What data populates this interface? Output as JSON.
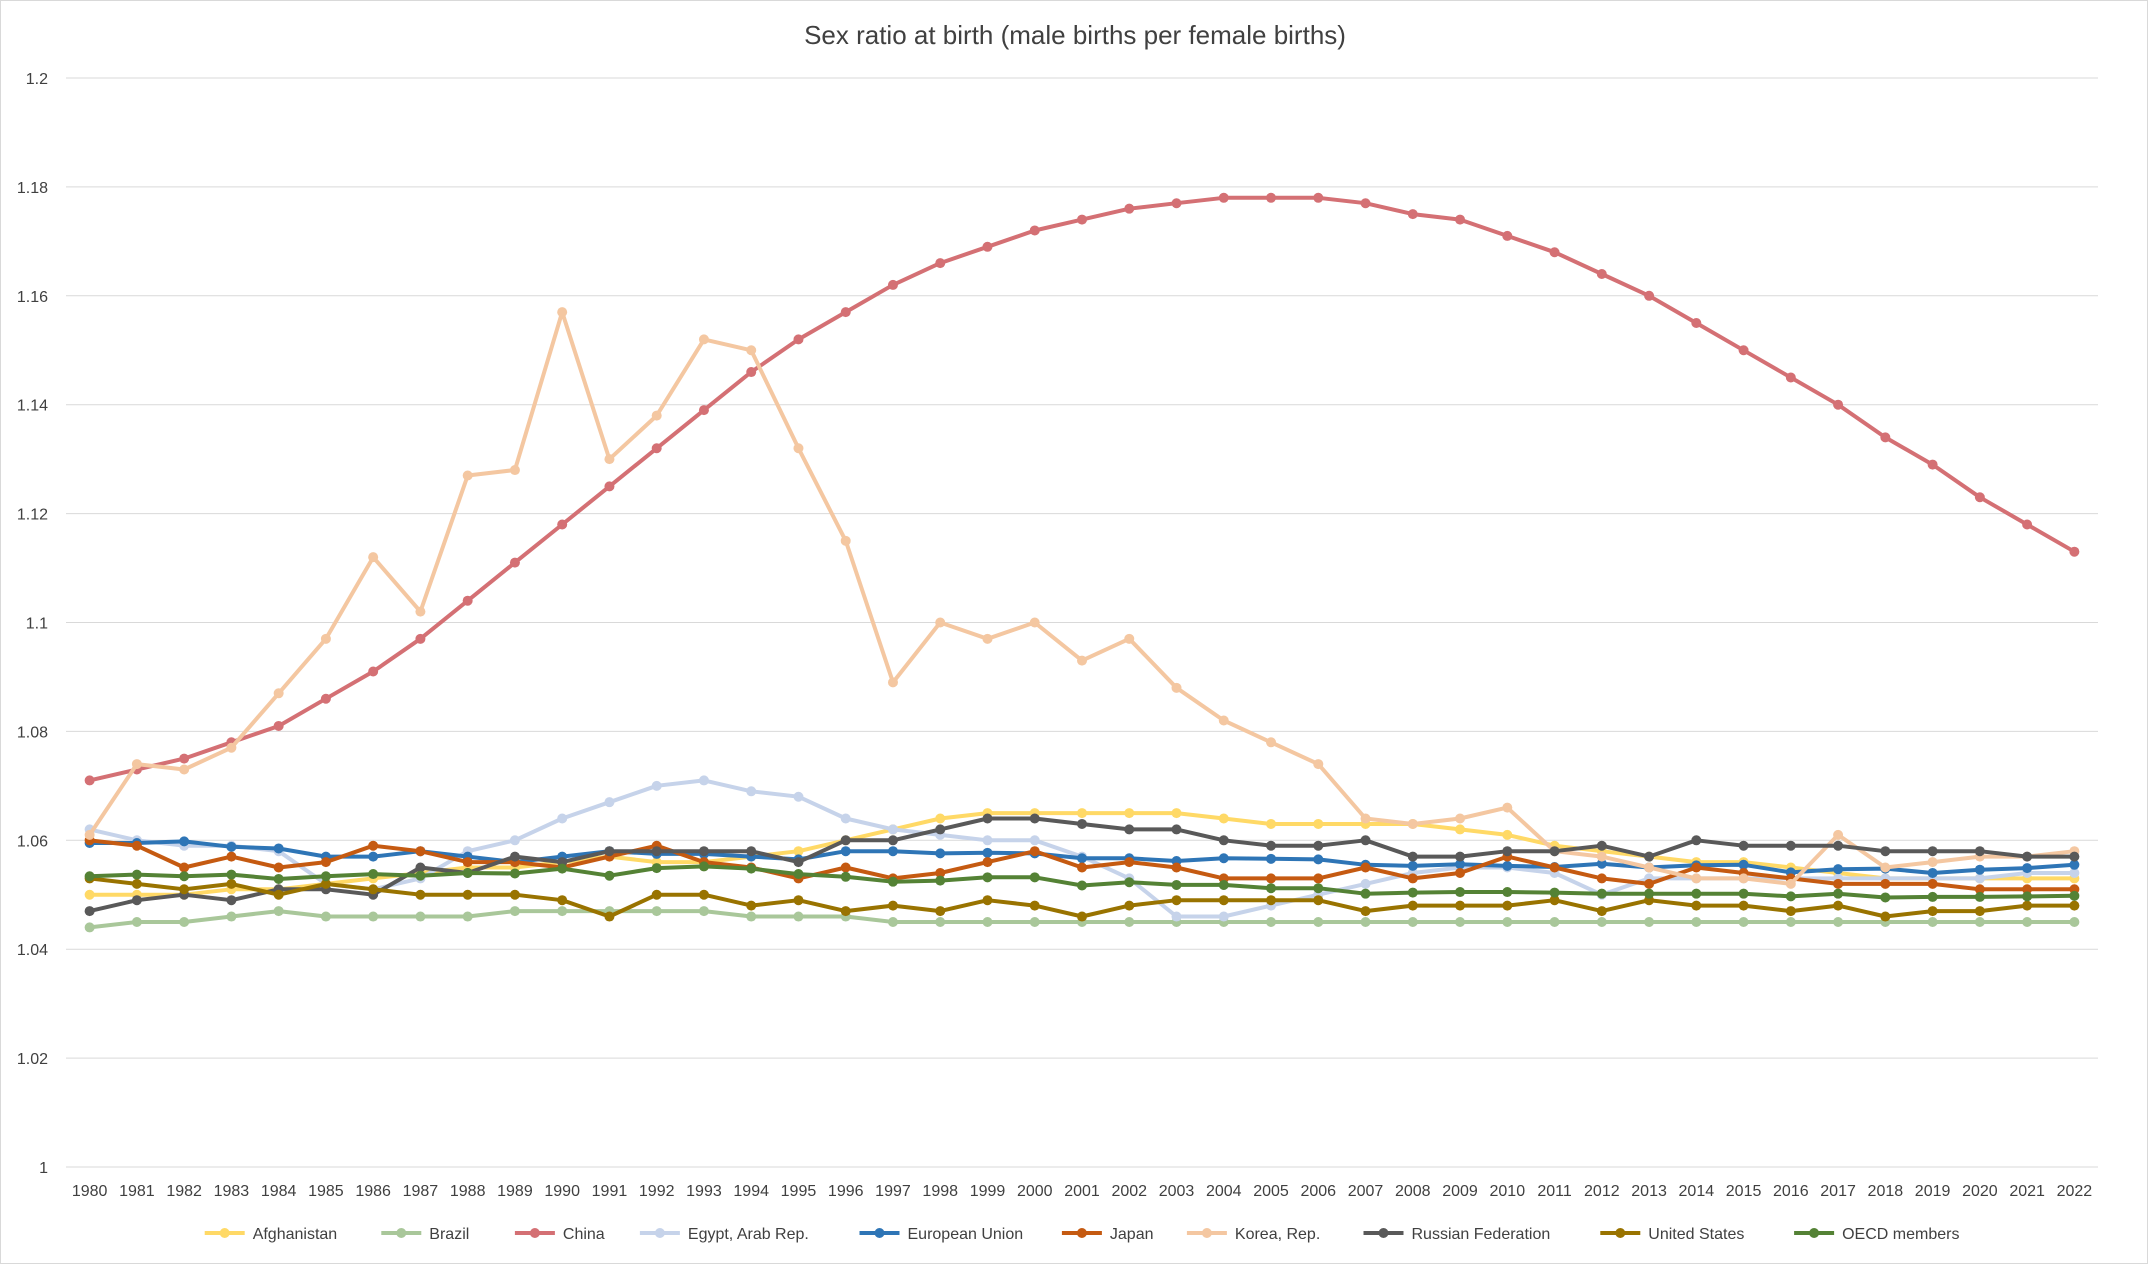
{
  "chart_data": {
    "type": "line",
    "title": "Sex ratio at birth (male births per female births)",
    "xlabel": "",
    "ylabel": "",
    "ylim": [
      1,
      1.2
    ],
    "yticks": [
      1,
      1.02,
      1.04,
      1.06,
      1.08,
      1.1,
      1.12,
      1.14,
      1.16,
      1.18,
      1.2
    ],
    "ytick_labels": [
      "1",
      "1.02",
      "1.04",
      "1.06",
      "1.08",
      "1.1",
      "1.12",
      "1.14",
      "1.16",
      "1.18",
      "1.2"
    ],
    "grid": true,
    "legend_position": "bottom",
    "x": [
      "1980",
      "1981",
      "1982",
      "1983",
      "1984",
      "1985",
      "1986",
      "1987",
      "1988",
      "1989",
      "1990",
      "1991",
      "1992",
      "1993",
      "1994",
      "1995",
      "1996",
      "1997",
      "1998",
      "1999",
      "2000",
      "2001",
      "2002",
      "2003",
      "2004",
      "2005",
      "2006",
      "2007",
      "2008",
      "2009",
      "2010",
      "2011",
      "2012",
      "2013",
      "2014",
      "2015",
      "2016",
      "2017",
      "2018",
      "2019",
      "2020",
      "2021",
      "2022"
    ],
    "series": [
      {
        "name": "Afghanistan",
        "color": "#ffd966",
        "values": [
          1.05,
          1.05,
          1.05,
          1.051,
          1.051,
          1.052,
          1.053,
          1.054,
          1.055,
          1.055,
          1.056,
          1.057,
          1.056,
          1.056,
          1.057,
          1.058,
          1.06,
          1.062,
          1.064,
          1.065,
          1.065,
          1.065,
          1.065,
          1.065,
          1.064,
          1.063,
          1.063,
          1.063,
          1.063,
          1.062,
          1.061,
          1.059,
          1.058,
          1.057,
          1.056,
          1.056,
          1.055,
          1.054,
          1.053,
          1.053,
          1.053,
          1.053,
          1.053
        ]
      },
      {
        "name": "Brazil",
        "color": "#a9c79a",
        "values": [
          1.044,
          1.045,
          1.045,
          1.046,
          1.047,
          1.046,
          1.046,
          1.046,
          1.046,
          1.047,
          1.047,
          1.047,
          1.047,
          1.047,
          1.046,
          1.046,
          1.046,
          1.045,
          1.045,
          1.045,
          1.045,
          1.045,
          1.045,
          1.045,
          1.045,
          1.045,
          1.045,
          1.045,
          1.045,
          1.045,
          1.045,
          1.045,
          1.045,
          1.045,
          1.045,
          1.045,
          1.045,
          1.045,
          1.045,
          1.045,
          1.045,
          1.045,
          1.045
        ]
      },
      {
        "name": "China",
        "color": "#d47074",
        "values": [
          1.071,
          1.073,
          1.075,
          1.078,
          1.081,
          1.086,
          1.091,
          1.097,
          1.104,
          1.111,
          1.118,
          1.125,
          1.132,
          1.139,
          1.146,
          1.152,
          1.157,
          1.162,
          1.166,
          1.169,
          1.172,
          1.174,
          1.176,
          1.177,
          1.178,
          1.178,
          1.178,
          1.177,
          1.175,
          1.174,
          1.171,
          1.168,
          1.164,
          1.16,
          1.155,
          1.15,
          1.145,
          1.14,
          1.134,
          1.129,
          1.123,
          1.118,
          1.113
        ]
      },
      {
        "name": "Egypt, Arab Rep.",
        "color": "#c6d3ea",
        "values": [
          1.062,
          1.06,
          1.059,
          1.059,
          1.058,
          1.052,
          1.051,
          1.053,
          1.058,
          1.06,
          1.064,
          1.067,
          1.07,
          1.071,
          1.069,
          1.068,
          1.064,
          1.062,
          1.061,
          1.06,
          1.06,
          1.057,
          1.053,
          1.046,
          1.046,
          1.048,
          1.05,
          1.052,
          1.054,
          1.055,
          1.055,
          1.054,
          1.05,
          1.053,
          1.053,
          1.053,
          1.053,
          1.053,
          1.053,
          1.053,
          1.053,
          1.054,
          1.054
        ]
      },
      {
        "name": "European Union",
        "color": "#2e75b6",
        "values": [
          1.0595,
          1.0595,
          1.0598,
          1.0588,
          1.0585,
          1.057,
          1.057,
          1.058,
          1.057,
          1.056,
          1.057,
          1.058,
          1.0575,
          1.0575,
          1.057,
          1.0565,
          1.058,
          1.058,
          1.0576,
          1.0577,
          1.0576,
          1.0567,
          1.0567,
          1.0562,
          1.0567,
          1.0566,
          1.0565,
          1.0555,
          1.0553,
          1.0556,
          1.0553,
          1.0551,
          1.0557,
          1.055,
          1.0554,
          1.0555,
          1.0541,
          1.0547,
          1.0548,
          1.054,
          1.0546,
          1.0549,
          1.0555
        ]
      },
      {
        "name": "Japan",
        "color": "#c55a11",
        "values": [
          1.06,
          1.059,
          1.055,
          1.057,
          1.055,
          1.056,
          1.059,
          1.058,
          1.056,
          1.056,
          1.055,
          1.057,
          1.059,
          1.056,
          1.055,
          1.053,
          1.055,
          1.053,
          1.054,
          1.056,
          1.058,
          1.055,
          1.056,
          1.055,
          1.053,
          1.053,
          1.053,
          1.055,
          1.053,
          1.054,
          1.057,
          1.055,
          1.053,
          1.052,
          1.055,
          1.054,
          1.053,
          1.052,
          1.052,
          1.052,
          1.051,
          1.051,
          1.051
        ]
      },
      {
        "name": "Korea, Rep.",
        "color": "#f4c7a1",
        "values": [
          1.061,
          1.074,
          1.073,
          1.077,
          1.087,
          1.097,
          1.112,
          1.102,
          1.127,
          1.128,
          1.157,
          1.13,
          1.138,
          1.152,
          1.15,
          1.132,
          1.115,
          1.089,
          1.1,
          1.097,
          1.1,
          1.093,
          1.097,
          1.088,
          1.082,
          1.078,
          1.074,
          1.064,
          1.063,
          1.064,
          1.066,
          1.058,
          1.057,
          1.055,
          1.053,
          1.053,
          1.052,
          1.061,
          1.055,
          1.056,
          1.057,
          1.057,
          1.058
        ]
      },
      {
        "name": "Russian Federation",
        "color": "#595959",
        "values": [
          1.047,
          1.049,
          1.05,
          1.049,
          1.051,
          1.051,
          1.05,
          1.055,
          1.054,
          1.057,
          1.056,
          1.058,
          1.058,
          1.058,
          1.058,
          1.056,
          1.06,
          1.06,
          1.062,
          1.064,
          1.064,
          1.063,
          1.062,
          1.062,
          1.06,
          1.059,
          1.059,
          1.06,
          1.057,
          1.057,
          1.058,
          1.058,
          1.059,
          1.057,
          1.06,
          1.059,
          1.059,
          1.059,
          1.058,
          1.058,
          1.058,
          1.057,
          1.057
        ]
      },
      {
        "name": "United States",
        "color": "#997300",
        "values": [
          1.053,
          1.052,
          1.051,
          1.052,
          1.05,
          1.052,
          1.051,
          1.05,
          1.05,
          1.05,
          1.049,
          1.046,
          1.05,
          1.05,
          1.048,
          1.049,
          1.047,
          1.048,
          1.047,
          1.049,
          1.048,
          1.046,
          1.048,
          1.049,
          1.049,
          1.049,
          1.049,
          1.047,
          1.048,
          1.048,
          1.048,
          1.049,
          1.047,
          1.049,
          1.048,
          1.048,
          1.047,
          1.048,
          1.046,
          1.047,
          1.047,
          1.048,
          1.048
        ]
      },
      {
        "name": "OECD members",
        "color": "#548235",
        "values": [
          1.0534,
          1.0537,
          1.0534,
          1.0537,
          1.0529,
          1.0534,
          1.0538,
          1.0535,
          1.054,
          1.0539,
          1.0548,
          1.0535,
          1.0549,
          1.0552,
          1.0548,
          1.0538,
          1.0533,
          1.0524,
          1.0526,
          1.0532,
          1.0532,
          1.0517,
          1.0523,
          1.0518,
          1.0518,
          1.0512,
          1.0512,
          1.0502,
          1.0504,
          1.0505,
          1.0505,
          1.0504,
          1.0502,
          1.0502,
          1.0502,
          1.0502,
          1.0497,
          1.0502,
          1.0495,
          1.0496,
          1.0496,
          1.0497,
          1.0498
        ]
      }
    ]
  }
}
